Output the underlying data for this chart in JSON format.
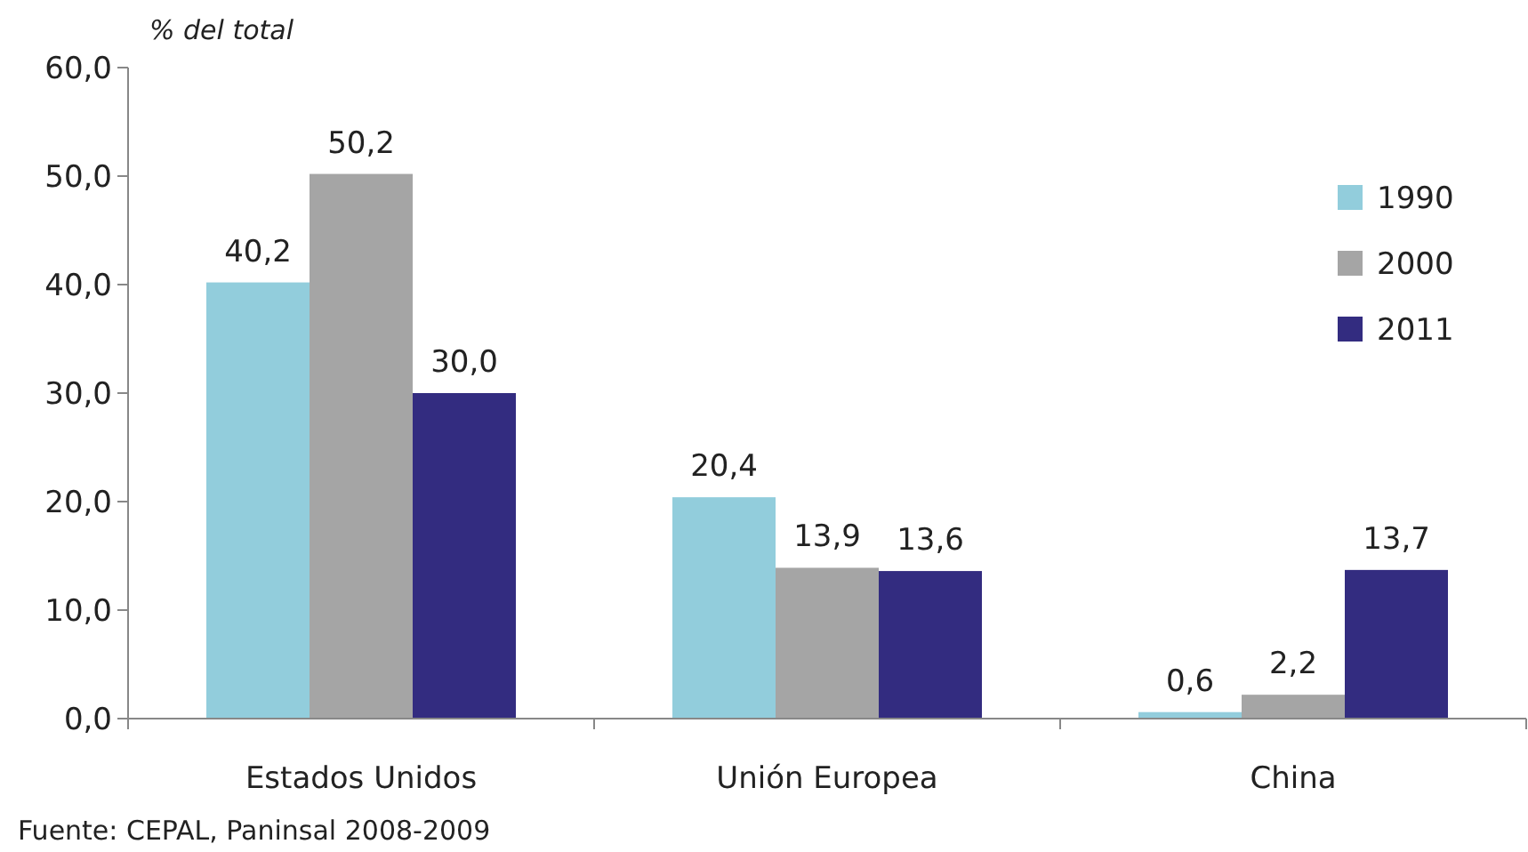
{
  "chart_data": {
    "type": "bar",
    "ylabel": "% del total",
    "categories": [
      "Estados Unidos",
      "Unión Europea",
      "China"
    ],
    "series": [
      {
        "name": "1990",
        "color": "#92cddc",
        "values": [
          40.2,
          20.4,
          0.6
        ],
        "value_labels": [
          "40,2",
          "20,4",
          "0,6"
        ]
      },
      {
        "name": "2000",
        "color": "#a5a5a5",
        "values": [
          50.2,
          13.9,
          2.2
        ],
        "value_labels": [
          "50,2",
          "13,9",
          "2,2"
        ]
      },
      {
        "name": "2011",
        "color": "#332c80",
        "values": [
          30.0,
          13.6,
          13.7
        ],
        "value_labels": [
          "30,0",
          "13,6",
          "13,7"
        ]
      }
    ],
    "ylim": [
      0,
      60
    ],
    "yticks": [
      {
        "value": 0,
        "label": "0,0"
      },
      {
        "value": 10,
        "label": "10,0"
      },
      {
        "value": 20,
        "label": "20,0"
      },
      {
        "value": 30,
        "label": "30,0"
      },
      {
        "value": 40,
        "label": "40,0"
      },
      {
        "value": 50,
        "label": "50,0"
      },
      {
        "value": 60,
        "label": "60,0"
      }
    ],
    "grid": false,
    "legend": "top right",
    "annotations": [
      "Fuente: CEPAL, Paninsal 2008-2009"
    ]
  }
}
